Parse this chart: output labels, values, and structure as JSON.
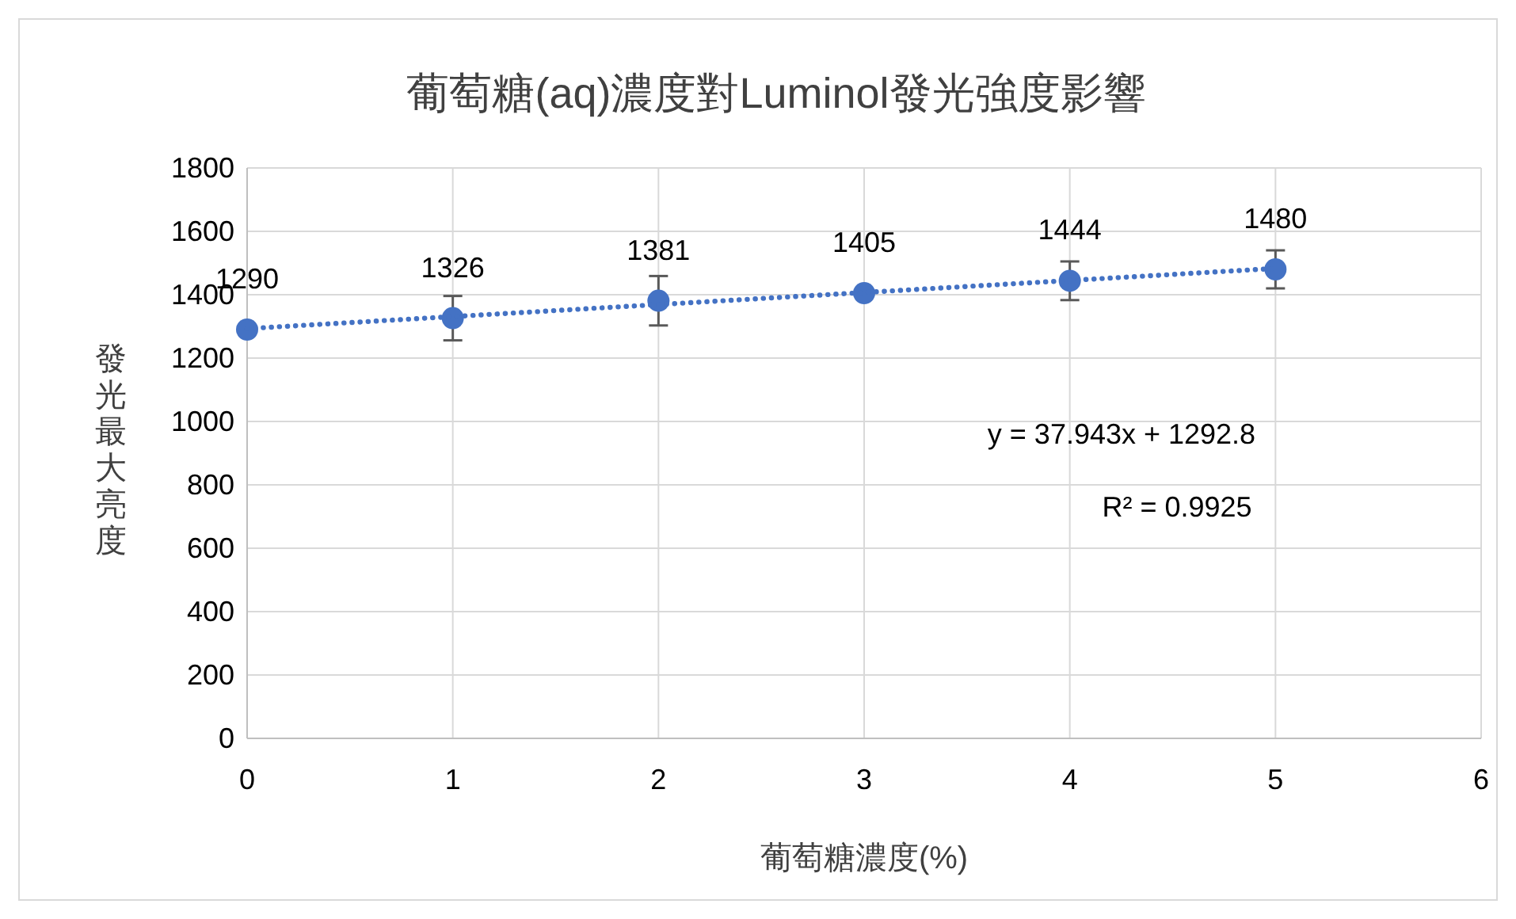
{
  "chart_data": {
    "type": "scatter",
    "title": "葡萄糖(aq)濃度對Luminol發光強度影響",
    "xlabel": "葡萄糖濃度(%)",
    "ylabel": "發光最大亮度",
    "x": [
      0,
      1,
      2,
      3,
      4,
      5
    ],
    "series": [
      {
        "color": "#4472c4",
        "values": [
          1290,
          1326,
          1381,
          1405,
          1444,
          1480
        ],
        "errors": [
          null,
          70,
          78,
          null,
          61,
          60
        ],
        "value_labels": [
          "1290",
          "1326",
          "1381",
          "1405",
          "1444",
          "1480"
        ],
        "marker": "circle"
      },
      {
        "type": "line",
        "color": "#4472c4",
        "x": [
          0,
          5
        ],
        "values": [
          1293,
          1483
        ],
        "line_style": "dotted",
        "marker": "none"
      }
    ],
    "xlim": [
      0,
      6
    ],
    "xticks": [
      0,
      1,
      2,
      3,
      4,
      5,
      6
    ],
    "ylim": [
      0,
      1800
    ],
    "yticks": [
      0,
      200,
      400,
      600,
      800,
      1000,
      1200,
      1400,
      1600,
      1800
    ],
    "grid": true,
    "annotations": [
      "y = 37.943x + 1292.8",
      "R² = 0.9925"
    ]
  }
}
